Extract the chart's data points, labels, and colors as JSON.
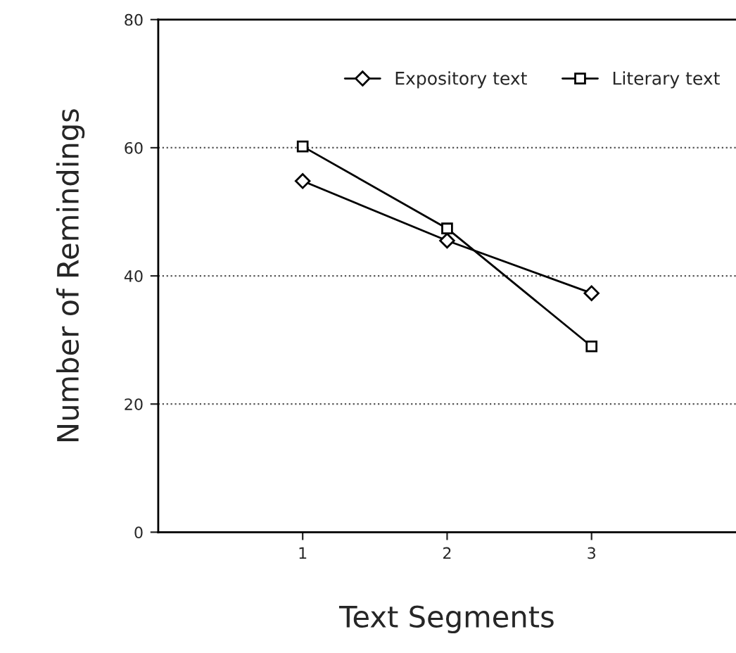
{
  "chart_data": {
    "type": "line",
    "xlabel": "Text Segments",
    "ylabel": "Number of Remindings",
    "x": [
      1,
      2,
      3
    ],
    "xlim": [
      0,
      4
    ],
    "xticks": [
      1,
      2,
      3
    ],
    "ylim": [
      0,
      80
    ],
    "yticks": [
      0,
      20,
      40,
      60,
      80
    ],
    "series": [
      {
        "name": "Expository text",
        "color": "#000000",
        "marker": "diamond",
        "values": [
          54.8,
          45.5,
          37.3
        ]
      },
      {
        "name": "Literary text",
        "color": "#000000",
        "marker": "square",
        "values": [
          60.2,
          47.4,
          29.0
        ]
      }
    ],
    "grid": "y",
    "legend": "top right",
    "line_style": "solid"
  }
}
